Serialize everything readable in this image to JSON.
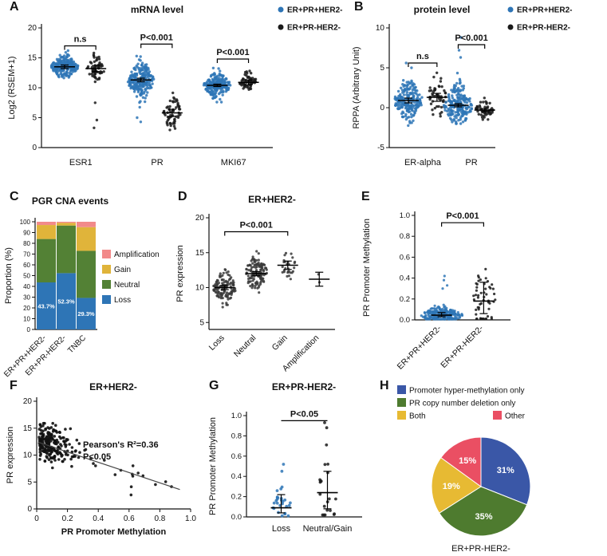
{
  "colors": {
    "series_blue": "#2e75b6",
    "series_black": "#1a1a1a",
    "loss_blue": "#2e75b6",
    "neutral_green": "#538135",
    "gain_yellow": "#e0b43a",
    "amplification_pink": "#f28a8a",
    "pie_blue": "#3a57a7",
    "pie_green": "#4e7b2f",
    "pie_yellow": "#e7ba33",
    "pie_red": "#ea4f63"
  },
  "chart_data": [
    {
      "panel": "A",
      "type": "cat-scatter",
      "title": "mRNA level",
      "ylabel": "Log2 (RSEM+1)",
      "ylim": [
        0,
        20
      ],
      "yticks": [
        0,
        5,
        10,
        15,
        20
      ],
      "ytick_labels": [
        "0",
        "5",
        "10",
        "15",
        "20"
      ],
      "categories": [
        {
          "label": "ESR1",
          "xf": 0.17
        },
        {
          "label": "PR",
          "xf": 0.5
        },
        {
          "label": "MKI67",
          "xf": 0.83
        }
      ],
      "legend": [
        {
          "label": "ER+PR+HER2-",
          "color": "#2e75b6"
        },
        {
          "label": "ER+PR-HER2-",
          "color": "#1a1a1a"
        }
      ],
      "groups": [
        {
          "category": "ESR1",
          "series": "ER+PR+HER2-",
          "color": "#2e75b6",
          "xf": 0.1,
          "n": 230,
          "mean": 13.5,
          "sd": 0.9,
          "min": 10.3,
          "max": 16.2,
          "err": [
            13.2,
            13.8
          ]
        },
        {
          "category": "ESR1",
          "series": "ER+PR-HER2-",
          "color": "#1a1a1a",
          "xf": 0.235,
          "n": 60,
          "mean": 13.2,
          "sd": 1.1,
          "min": 9.5,
          "max": 15.8,
          "err": [
            12.7,
            13.7
          ],
          "extra": [
            3.3,
            4.6,
            7.5
          ]
        },
        {
          "category": "PR",
          "series": "ER+PR+HER2-",
          "color": "#2e75b6",
          "xf": 0.43,
          "n": 230,
          "mean": 11.3,
          "sd": 1.5,
          "min": 6.5,
          "max": 15.3,
          "err": [
            11.0,
            11.6
          ],
          "extra": [
            4.3,
            5.0
          ]
        },
        {
          "category": "PR",
          "series": "ER+PR-HER2-",
          "color": "#1a1a1a",
          "xf": 0.565,
          "n": 60,
          "mean": 5.8,
          "sd": 1.5,
          "min": 2.6,
          "max": 9.8,
          "err": [
            5.2,
            6.4
          ]
        },
        {
          "category": "MKI67",
          "series": "ER+PR+HER2-",
          "color": "#2e75b6",
          "xf": 0.76,
          "n": 230,
          "mean": 10.4,
          "sd": 1.0,
          "min": 7.6,
          "max": 13.3,
          "err": [
            10.2,
            10.6
          ]
        },
        {
          "category": "MKI67",
          "series": "ER+PR-HER2-",
          "color": "#1a1a1a",
          "xf": 0.895,
          "n": 60,
          "mean": 10.9,
          "sd": 0.8,
          "min": 9.0,
          "max": 13.4,
          "err": [
            10.5,
            11.3
          ]
        }
      ],
      "annotations": [
        {
          "text": "n.s",
          "x1f": 0.1,
          "x2f": 0.235,
          "y": 17.0
        },
        {
          "text": "P<0.001",
          "x1f": 0.43,
          "x2f": 0.565,
          "y": 17.3
        },
        {
          "text": "P<0.001",
          "x1f": 0.76,
          "x2f": 0.895,
          "y": 14.8
        }
      ]
    },
    {
      "panel": "B",
      "type": "cat-scatter",
      "title": "protein level",
      "ylabel": "RPPA (Arbitrary Unit)",
      "ylim": [
        -5,
        10
      ],
      "yticks": [
        -5,
        0,
        5,
        10
      ],
      "ytick_labels": [
        "-5",
        "0",
        "5",
        "10"
      ],
      "categories": [
        {
          "label": "ER-alpha",
          "xf": 0.315
        },
        {
          "label": "PR",
          "xf": 0.775
        }
      ],
      "legend": [
        {
          "label": "ER+PR+HER2-",
          "color": "#2e75b6"
        },
        {
          "label": "ER+PR-HER2-",
          "color": "#1a1a1a"
        }
      ],
      "groups": [
        {
          "category": "ER-alpha",
          "series": "ER+PR+HER2-",
          "color": "#2e75b6",
          "xf": 0.18,
          "n": 210,
          "mean": 0.9,
          "sd": 1.1,
          "min": -2.6,
          "max": 4.2,
          "err": [
            0.6,
            1.2
          ],
          "extra": [
            5.0,
            5.6
          ]
        },
        {
          "category": "ER-alpha",
          "series": "ER+PR-HER2-",
          "color": "#1a1a1a",
          "xf": 0.45,
          "n": 50,
          "mean": 1.3,
          "sd": 1.3,
          "min": -1.6,
          "max": 4.6,
          "err": [
            0.8,
            1.8
          ]
        },
        {
          "category": "PR",
          "series": "ER+PR+HER2-",
          "color": "#2e75b6",
          "xf": 0.65,
          "n": 210,
          "mean": 0.3,
          "sd": 1.2,
          "min": -2.0,
          "max": 5.5,
          "err": [
            0.1,
            0.5
          ],
          "extra": [
            6.3,
            7.2,
            8.8
          ]
        },
        {
          "category": "PR",
          "series": "ER+PR-HER2-",
          "color": "#1a1a1a",
          "xf": 0.9,
          "n": 50,
          "mean": -0.3,
          "sd": 0.6,
          "min": -1.9,
          "max": 1.4,
          "err": [
            -0.5,
            -0.1
          ]
        }
      ],
      "annotations": [
        {
          "text": "n.s",
          "x1f": 0.18,
          "x2f": 0.45,
          "y": 5.6
        },
        {
          "text": "P<0.001",
          "x1f": 0.65,
          "x2f": 0.9,
          "y": 7.9
        }
      ]
    },
    {
      "panel": "C",
      "type": "stacked-bar",
      "title": "PGR CNA events",
      "ylabel": "Proportion (%)",
      "ylim": [
        0,
        100
      ],
      "yticks": [
        0,
        10,
        20,
        30,
        40,
        50,
        60,
        70,
        80,
        90,
        100
      ],
      "ytick_labels": [
        "0",
        "10",
        "20",
        "30",
        "40",
        "50",
        "60",
        "70",
        "80",
        "90",
        "100"
      ],
      "categories": [
        {
          "label": "ER+PR+HER2-",
          "xf": 0.18
        },
        {
          "label": "ER+PR-HER2-",
          "xf": 0.5
        },
        {
          "label": "TNBC",
          "xf": 0.82
        }
      ],
      "segments": [
        {
          "name": "Loss",
          "color": "#2e75b6"
        },
        {
          "name": "Neutral",
          "color": "#538135"
        },
        {
          "name": "Gain",
          "color": "#e0b43a"
        },
        {
          "name": "Amplification",
          "color": "#f28a8a"
        }
      ],
      "legend_order": [
        "Amplification",
        "Gain",
        "Neutral",
        "Loss"
      ],
      "values": [
        {
          "category": "ER+PR+HER2-",
          "Loss": 43.7,
          "Neutral": 40.3,
          "Gain": 13.0,
          "Amplification": 3.0,
          "loss_label": "43.7%"
        },
        {
          "category": "ER+PR-HER2-",
          "Loss": 52.3,
          "Neutral": 44.2,
          "Gain": 2.5,
          "Amplification": 1.0,
          "loss_label": "52.3%"
        },
        {
          "category": "TNBC",
          "Loss": 29.3,
          "Neutral": 43.7,
          "Gain": 22.0,
          "Amplification": 5.0,
          "loss_label": "29.3%"
        }
      ]
    },
    {
      "panel": "D",
      "type": "cat-scatter",
      "title": "ER+HER2-",
      "ylabel": "PR expression",
      "ylim": [
        4,
        20
      ],
      "yticks": [
        5,
        10,
        15,
        20
      ],
      "ytick_labels": [
        "5",
        "10",
        "15",
        "20"
      ],
      "categories": [
        {
          "label": "Loss",
          "xf": 0.125
        },
        {
          "label": "Neutral",
          "xf": 0.375
        },
        {
          "label": "Gain",
          "xf": 0.625
        },
        {
          "label": "Amplification",
          "xf": 0.875
        }
      ],
      "groups": [
        {
          "category": "Loss",
          "color": "#3a3a3a",
          "xf": 0.125,
          "n": 130,
          "mean": 10.0,
          "sd": 1.0,
          "min": 7.2,
          "max": 13.2,
          "err": [
            9.7,
            10.3
          ]
        },
        {
          "category": "Neutral",
          "color": "#3a3a3a",
          "xf": 0.375,
          "n": 130,
          "mean": 12.0,
          "sd": 1.2,
          "min": 8.6,
          "max": 15.6,
          "err": [
            11.7,
            12.3
          ]
        },
        {
          "category": "Gain",
          "color": "#3a3a3a",
          "xf": 0.625,
          "n": 28,
          "mean": 13.2,
          "sd": 1.0,
          "min": 11.0,
          "max": 15.4,
          "err": [
            12.6,
            13.8
          ]
        },
        {
          "category": "Amplification",
          "color": "#3a3a3a",
          "xf": 0.875,
          "n": 2,
          "mean": 11.2,
          "sd": 0.6,
          "min": 10.6,
          "max": 11.9,
          "err": [
            10.2,
            12.2
          ]
        }
      ],
      "annotations": [
        {
          "text": "P<0.001",
          "x1f": 0.125,
          "x2f": 0.625,
          "y": 18.0
        }
      ]
    },
    {
      "panel": "E",
      "type": "cat-scatter",
      "title": "",
      "ylabel": "PR Promoter Methylation",
      "ylim": [
        0,
        1
      ],
      "yticks": [
        0,
        0.2,
        0.4,
        0.6,
        0.8,
        1.0
      ],
      "ytick_labels": [
        "0.0",
        "0.2",
        "0.4",
        "0.6",
        "0.8",
        "1.0"
      ],
      "categories": [
        {
          "label": "ER+PR+HER2-",
          "xf": 0.28
        },
        {
          "label": "ER+PR-HER2-",
          "xf": 0.72
        }
      ],
      "groups": [
        {
          "category": "ER+PR+HER2-",
          "color": "#2e75b6",
          "xf": 0.28,
          "n": 240,
          "mean": 0.045,
          "sd": 0.04,
          "min": 0.008,
          "max": 0.45,
          "err": [
            0.03,
            0.07
          ],
          "extra": [
            0.3,
            0.33,
            0.38,
            0.42
          ]
        },
        {
          "category": "ER+PR-HER2-",
          "color": "#1a1a1a",
          "xf": 0.72,
          "n": 55,
          "mean": 0.18,
          "sd": 0.17,
          "min": 0.01,
          "max": 0.9,
          "err": [
            0.06,
            0.36
          ]
        }
      ],
      "annotations": [
        {
          "text": "P<0.001",
          "x1f": 0.28,
          "x2f": 0.72,
          "y": 0.93
        }
      ]
    },
    {
      "panel": "F",
      "type": "xy-scatter",
      "title": "ER+HER2-",
      "xlabel": "PR Promoter Methylation",
      "ylabel": "PR expression",
      "xlim": [
        0,
        1
      ],
      "ylim": [
        0,
        20
      ],
      "xticks": [
        0,
        0.2,
        0.4,
        0.6,
        0.8,
        1.0
      ],
      "xtick_labels": [
        "0",
        "0.2",
        "0.4",
        "0.6",
        "0.8",
        "1.0"
      ],
      "yticks": [
        0,
        5,
        10,
        15,
        20
      ],
      "ytick_labels": [
        "0",
        "5",
        "10",
        "15",
        "20"
      ],
      "n": 240,
      "point_color": "#111111",
      "trend": {
        "intercept": 12.8,
        "slope": -9.5,
        "noise": 1.8,
        "x_base": 0.015,
        "x_scale": 0.11,
        "tail_p": 0.06,
        "xmin": 0.01,
        "xmax": 0.93,
        "ymin": 2.6,
        "ymax": 15.9
      },
      "regression": {
        "x1": 0.01,
        "y1": 12.4,
        "x2": 0.93,
        "y2": 3.6
      },
      "annotation_lines": [
        "Pearson's R²=0.36",
        "P<0.05"
      ]
    },
    {
      "panel": "G",
      "type": "cat-scatter",
      "title": "ER+PR-HER2-",
      "ylabel": "PR Promoter Methylation",
      "ylim": [
        0,
        1
      ],
      "yticks": [
        0,
        0.2,
        0.4,
        0.6,
        0.8,
        1.0
      ],
      "ytick_labels": [
        "0.0",
        "0.2",
        "0.4",
        "0.6",
        "0.8",
        "1.0"
      ],
      "categories": [
        {
          "label": "Loss",
          "xf": 0.3
        },
        {
          "label": "Neutral/Gain",
          "xf": 0.7
        }
      ],
      "groups": [
        {
          "category": "Loss",
          "color": "#2e75b6",
          "xf": 0.3,
          "n": 26,
          "mean": 0.09,
          "sd": 0.1,
          "min": 0.01,
          "max": 0.55,
          "err": [
            0.04,
            0.22
          ],
          "extra": [
            0.45,
            0.52
          ]
        },
        {
          "category": "Neutral/Gain",
          "color": "#1a1a1a",
          "xf": 0.7,
          "n": 20,
          "mean": 0.24,
          "sd": 0.2,
          "min": 0.02,
          "max": 0.93,
          "err": [
            0.08,
            0.45
          ],
          "extra": [
            0.88,
            0.93
          ]
        }
      ],
      "annotations": [
        {
          "text": "P<0.05",
          "x1f": 0.3,
          "x2f": 0.7,
          "y": 0.95,
          "flat": true
        }
      ]
    },
    {
      "panel": "H",
      "type": "pie",
      "bottom_label": "ER+PR-HER2-",
      "slices": [
        {
          "label": "Promoter hyper-methylation only",
          "pct": 31,
          "pct_label": "31%",
          "color": "#3a57a7"
        },
        {
          "label": "PR copy number deletion only",
          "pct": 35,
          "pct_label": "35%",
          "color": "#4e7b2f"
        },
        {
          "label": "Both",
          "pct": 19,
          "pct_label": "19%",
          "color": "#e7ba33"
        },
        {
          "label": "Other",
          "pct": 15,
          "pct_label": "15%",
          "color": "#ea4f63"
        }
      ]
    }
  ]
}
